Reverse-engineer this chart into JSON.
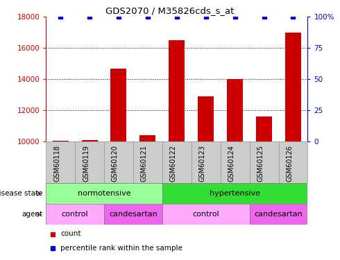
{
  "title": "GDS2070 / M35826cds_s_at",
  "samples": [
    "GSM60118",
    "GSM60119",
    "GSM60120",
    "GSM60121",
    "GSM60122",
    "GSM60123",
    "GSM60124",
    "GSM60125",
    "GSM60126"
  ],
  "counts": [
    10050,
    10100,
    14700,
    10400,
    16500,
    12900,
    14000,
    11600,
    17000
  ],
  "percentile_ranks": [
    100,
    100,
    100,
    100,
    100,
    100,
    100,
    100,
    100
  ],
  "ylim_left": [
    10000,
    18000
  ],
  "ylim_right": [
    0,
    100
  ],
  "yticks_left": [
    10000,
    12000,
    14000,
    16000,
    18000
  ],
  "yticks_right": [
    0,
    25,
    50,
    75,
    100
  ],
  "bar_color": "#cc0000",
  "dot_color": "#0000cc",
  "bg_color": "#ffffff",
  "bar_width": 0.55,
  "disease_state": [
    {
      "label": "normotensive",
      "start": 0,
      "end": 4,
      "color": "#99ff99"
    },
    {
      "label": "hypertensive",
      "start": 4,
      "end": 9,
      "color": "#33dd33"
    }
  ],
  "agent": [
    {
      "label": "control",
      "start": 0,
      "end": 2,
      "color": "#ffaaff"
    },
    {
      "label": "candesartan",
      "start": 2,
      "end": 4,
      "color": "#ee66ee"
    },
    {
      "label": "control",
      "start": 4,
      "end": 7,
      "color": "#ffaaff"
    },
    {
      "label": "candesartan",
      "start": 7,
      "end": 9,
      "color": "#ee66ee"
    }
  ],
  "legend_count_color": "#cc0000",
  "legend_pct_color": "#0000cc",
  "left_axis_color": "#cc0000",
  "right_axis_color": "#0000cc",
  "xtick_bg_color": "#cccccc",
  "xtick_border_color": "#999999"
}
